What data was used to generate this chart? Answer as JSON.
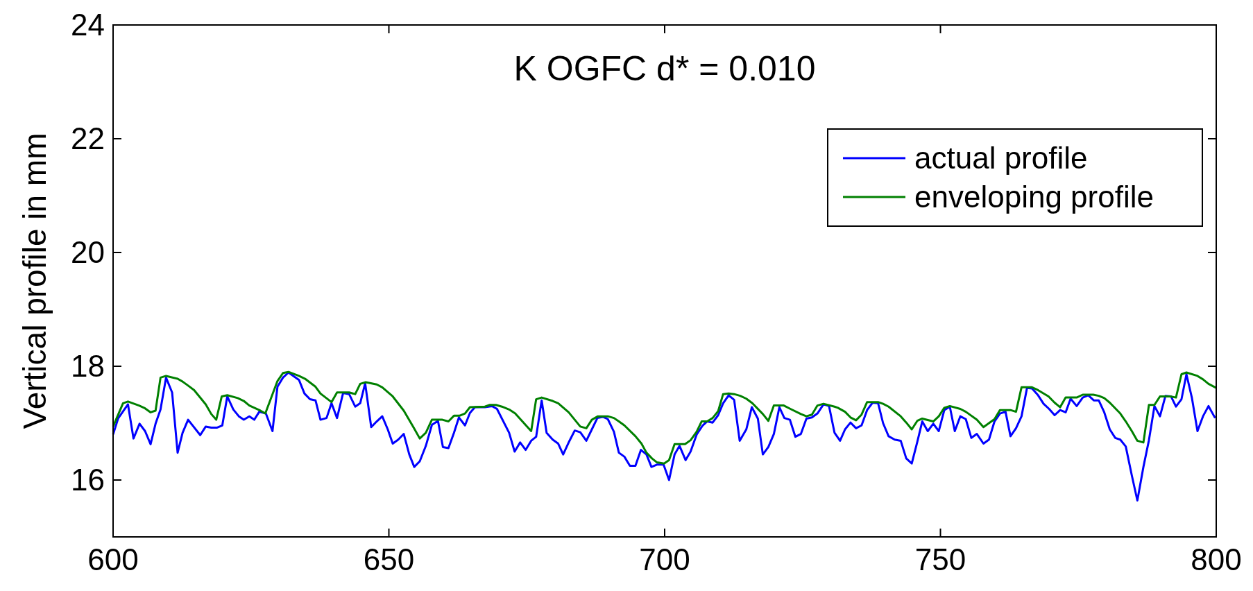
{
  "chart_data": {
    "type": "line",
    "title": "K OGFC d* = 0.010",
    "ylabel": "Vertical profile in mm",
    "xlim": [
      600,
      800
    ],
    "xticks": [
      600,
      650,
      700,
      750,
      800
    ],
    "ylim": [
      15,
      24
    ],
    "yticks": [
      16,
      18,
      20,
      22,
      24
    ],
    "grid": false,
    "legend": "top right",
    "line_style": "solid",
    "marker": "none",
    "series": [
      {
        "name": "actual profile",
        "color": "#0000ff",
        "x": [
          600,
          600.9,
          602.7,
          603.7,
          604.8,
          605.8,
          606.8,
          607.7,
          608.6,
          609.6,
          610.7,
          611.7,
          612.6,
          613.6,
          615.8,
          616.8,
          617.8,
          618.8,
          619.8,
          620.7,
          621.8,
          622.8,
          623.7,
          624.7,
          625.6,
          626.5,
          627.7,
          628.9,
          629.8,
          630.8,
          631.8,
          633.7,
          634.7,
          635.7,
          636.7,
          637.6,
          638.7,
          639.6,
          640.6,
          641.7,
          642.8,
          643.9,
          644.8,
          645.7,
          646.8,
          647.8,
          648.8,
          649.8,
          650.7,
          651.7,
          652.7,
          653.7,
          654.6,
          655.6,
          656.7,
          657.8,
          658.9,
          659.8,
          660.8,
          661.8,
          662.7,
          663.8,
          664.7,
          665.6,
          667.4,
          668.7,
          669.6,
          671.8,
          672.8,
          673.8,
          674.8,
          675.8,
          676.7,
          677.7,
          678.6,
          679.7,
          680.7,
          681.6,
          682.7,
          683.7,
          684.7,
          685.8,
          686.8,
          687.8,
          688.8,
          689.7,
          690.8,
          691.7,
          692.7,
          693.7,
          694.7,
          695.7,
          696.7,
          697.6,
          698.6,
          699.8,
          700.8,
          701.8,
          702.7,
          703.8,
          704.7,
          705.8,
          706.9,
          707.7,
          708.7,
          709.7,
          710.6,
          711.6,
          712.6,
          713.6,
          714.8,
          715.8,
          716.9,
          717.8,
          718.8,
          719.8,
          720.8,
          721.7,
          722.7,
          723.7,
          724.7,
          725.7,
          726.7,
          727.7,
          728.8,
          729.8,
          730.8,
          731.8,
          732.7,
          733.7,
          734.7,
          735.7,
          736.7,
          737.7,
          738.7,
          739.6,
          740.6,
          741.7,
          742.8,
          743.8,
          744.8,
          745.8,
          746.7,
          747.7,
          748.7,
          749.7,
          750.7,
          751.7,
          752.6,
          753.6,
          754.6,
          755.6,
          756.6,
          757.8,
          758.8,
          759.8,
          760.8,
          761.8,
          762.7,
          763.7,
          764.7,
          765.7,
          766.6,
          767.7,
          768.7,
          769.7,
          770.7,
          771.7,
          772.7,
          773.6,
          774.7,
          775.8,
          776.8,
          777.8,
          778.7,
          779.7,
          780.7,
          781.7,
          782.6,
          783.6,
          784.7,
          785.7,
          786.8,
          787.8,
          788.8,
          789.8,
          790.8,
          791.8,
          792.7,
          793.7,
          794.6,
          795.6,
          796.6,
          797.6,
          798.6,
          799.8
        ],
        "values": [
          16.8,
          17.08,
          17.33,
          16.73,
          16.99,
          16.86,
          16.63,
          16.99,
          17.24,
          17.8,
          17.54,
          16.48,
          16.83,
          17.06,
          16.79,
          16.94,
          16.92,
          16.92,
          16.96,
          17.47,
          17.24,
          17.12,
          17.06,
          17.12,
          17.06,
          17.2,
          17.17,
          16.86,
          17.64,
          17.8,
          17.89,
          17.76,
          17.52,
          17.42,
          17.4,
          17.06,
          17.09,
          17.35,
          17.09,
          17.53,
          17.51,
          17.29,
          17.35,
          17.7,
          16.93,
          17.03,
          17.12,
          16.89,
          16.64,
          16.71,
          16.81,
          16.45,
          16.23,
          16.33,
          16.6,
          16.97,
          17.04,
          16.58,
          16.56,
          16.83,
          17.1,
          16.96,
          17.18,
          17.28,
          17.28,
          17.3,
          17.25,
          16.83,
          16.5,
          16.66,
          16.53,
          16.69,
          16.76,
          17.4,
          16.83,
          16.71,
          16.64,
          16.45,
          16.68,
          16.87,
          16.84,
          16.69,
          16.89,
          17.09,
          17.11,
          17.07,
          16.85,
          16.48,
          16.41,
          16.25,
          16.25,
          16.53,
          16.45,
          16.23,
          16.27,
          16.27,
          16.0,
          16.45,
          16.6,
          16.35,
          16.5,
          16.8,
          16.96,
          17.03,
          17.01,
          17.14,
          17.35,
          17.49,
          17.41,
          16.69,
          16.89,
          17.28,
          17.08,
          16.45,
          16.58,
          16.81,
          17.28,
          17.09,
          17.06,
          16.76,
          16.81,
          17.08,
          17.1,
          17.17,
          17.33,
          17.3,
          16.83,
          16.69,
          16.89,
          17.01,
          16.91,
          16.96,
          17.23,
          17.36,
          17.35,
          17.0,
          16.77,
          16.71,
          16.69,
          16.38,
          16.29,
          16.67,
          17.03,
          16.86,
          16.99,
          16.86,
          17.23,
          17.29,
          16.86,
          17.12,
          17.07,
          16.74,
          16.81,
          16.64,
          16.71,
          17.03,
          17.17,
          17.2,
          16.77,
          16.91,
          17.12,
          17.62,
          17.61,
          17.49,
          17.34,
          17.25,
          17.14,
          17.23,
          17.19,
          17.43,
          17.3,
          17.45,
          17.49,
          17.4,
          17.4,
          17.19,
          16.89,
          16.74,
          16.71,
          16.59,
          16.08,
          15.64,
          16.23,
          16.7,
          17.3,
          17.12,
          17.48,
          17.47,
          17.29,
          17.42,
          17.86,
          17.44,
          16.86,
          17.12,
          17.3,
          17.09
        ]
      },
      {
        "name": "enveloping profile",
        "color": "#008000",
        "x": [
          600,
          601.8,
          602.7,
          604.7,
          605.8,
          606.8,
          607.7,
          608.6,
          609.6,
          611.7,
          612.6,
          613.6,
          614.7,
          616.8,
          617.8,
          618.7,
          619.7,
          620.7,
          622.6,
          623.7,
          624.7,
          626.7,
          627.6,
          629.8,
          630.8,
          631.8,
          633.7,
          634.8,
          636.7,
          637.6,
          639.6,
          640.6,
          642.8,
          643.9,
          644.8,
          645.8,
          647.8,
          648.8,
          650.7,
          652.7,
          654.5,
          655.6,
          656.7,
          657.8,
          659.7,
          660.8,
          661.8,
          662.8,
          663.8,
          664.7,
          667.4,
          668.3,
          669.4,
          670.5,
          671.8,
          672.9,
          675.8,
          676.7,
          677.7,
          679.7,
          680.7,
          682.6,
          684.7,
          685.8,
          686.8,
          687.9,
          689.7,
          690.8,
          691.7,
          692.7,
          694.7,
          695.8,
          696.7,
          697.7,
          698.6,
          699.9,
          700.8,
          701.8,
          703.7,
          704.7,
          705.8,
          706.7,
          707.7,
          708.7,
          709.7,
          710.6,
          711.6,
          712.6,
          713.7,
          714.8,
          715.9,
          717.8,
          718.8,
          719.8,
          721.6,
          722.8,
          724.7,
          725.7,
          726.7,
          727.7,
          728.8,
          730.8,
          731.4,
          732.7,
          733.7,
          734.7,
          735.7,
          736.7,
          738.7,
          739.6,
          740.6,
          742.8,
          743.8,
          744.8,
          745.8,
          746.7,
          748.7,
          749.7,
          750.7,
          751.7,
          753.6,
          754.6,
          756.6,
          757.8,
          759.8,
          760.8,
          762.7,
          763.7,
          764.7,
          766.6,
          767.7,
          769.6,
          770.7,
          771.7,
          772.7,
          774.7,
          775.8,
          777.7,
          778.7,
          779.7,
          780.7,
          782.6,
          783.6,
          784.7,
          785.7,
          786.8,
          787.8,
          788.8,
          789.8,
          791.7,
          792.7,
          793.7,
          794.6,
          796.6,
          797.6,
          798.6,
          799.8,
          800
        ],
        "values": [
          16.94,
          17.35,
          17.38,
          17.31,
          17.26,
          17.19,
          17.22,
          17.8,
          17.83,
          17.78,
          17.73,
          17.66,
          17.58,
          17.33,
          17.16,
          17.06,
          17.47,
          17.49,
          17.44,
          17.39,
          17.31,
          17.22,
          17.17,
          17.74,
          17.88,
          17.9,
          17.83,
          17.78,
          17.64,
          17.52,
          17.37,
          17.54,
          17.54,
          17.51,
          17.69,
          17.72,
          17.68,
          17.63,
          17.47,
          17.22,
          16.92,
          16.73,
          16.83,
          17.06,
          17.06,
          17.03,
          17.13,
          17.13,
          17.17,
          17.28,
          17.29,
          17.32,
          17.32,
          17.29,
          17.24,
          17.17,
          16.86,
          17.42,
          17.45,
          17.39,
          17.35,
          17.19,
          16.94,
          16.91,
          17.06,
          17.12,
          17.12,
          17.09,
          17.03,
          16.96,
          16.77,
          16.64,
          16.48,
          16.38,
          16.31,
          16.29,
          16.35,
          16.63,
          16.63,
          16.7,
          16.85,
          17.03,
          17.03,
          17.09,
          17.21,
          17.51,
          17.52,
          17.51,
          17.48,
          17.43,
          17.35,
          17.16,
          17.04,
          17.31,
          17.31,
          17.25,
          17.16,
          17.12,
          17.15,
          17.31,
          17.34,
          17.29,
          17.27,
          17.2,
          17.1,
          17.05,
          17.15,
          17.37,
          17.37,
          17.34,
          17.29,
          17.12,
          17.01,
          16.89,
          17.04,
          17.08,
          17.03,
          17.12,
          17.27,
          17.3,
          17.25,
          17.2,
          17.06,
          16.93,
          17.07,
          17.23,
          17.23,
          17.2,
          17.63,
          17.63,
          17.58,
          17.47,
          17.36,
          17.28,
          17.45,
          17.45,
          17.5,
          17.5,
          17.48,
          17.44,
          17.36,
          17.17,
          17.03,
          16.86,
          16.69,
          16.66,
          17.32,
          17.32,
          17.47,
          17.47,
          17.45,
          17.86,
          17.89,
          17.83,
          17.77,
          17.69,
          17.63,
          17.62
        ]
      }
    ]
  }
}
